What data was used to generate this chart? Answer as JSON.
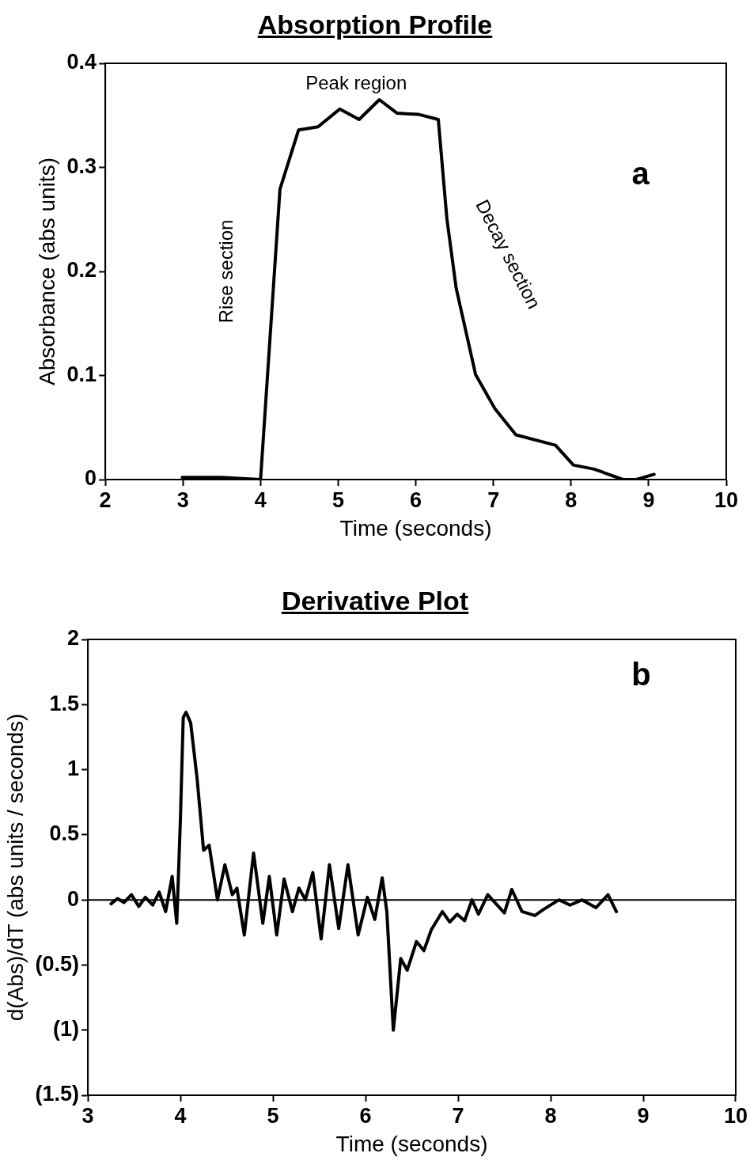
{
  "chart_data": [
    {
      "type": "line",
      "title": "Absorption Profile",
      "xlabel": "Time (seconds)",
      "ylabel": "Absorbance (abs units)",
      "xlim": [
        2,
        10
      ],
      "xticks": [
        2,
        3,
        4,
        5,
        6,
        7,
        8,
        9,
        10
      ],
      "ylim": [
        0,
        0.4
      ],
      "yticks": [
        0,
        0.1,
        0.2,
        0.3,
        0.4
      ],
      "grid": false,
      "marker": "none",
      "annotations": [
        "Peak region",
        "Rise section",
        "Decay section",
        "a"
      ],
      "series": [
        {
          "color": "#000000",
          "x": [
            2.99,
            3.5,
            4.0,
            4.25,
            4.49,
            4.74,
            5.02,
            5.27,
            5.53,
            5.76,
            6.03,
            6.29,
            6.4,
            6.52,
            6.77,
            7.02,
            7.29,
            7.8,
            8.03,
            8.3,
            8.67,
            8.84,
            9.07
          ],
          "values": [
            0.002,
            0.002,
            0,
            0.279,
            0.336,
            0.339,
            0.356,
            0.346,
            0.365,
            0.352,
            0.351,
            0.346,
            0.251,
            0.184,
            0.101,
            0.068,
            0.043,
            0.033,
            0.014,
            0.01,
            0,
            0,
            0.005
          ]
        }
      ]
    },
    {
      "type": "line",
      "title": "Derivative Plot",
      "xlabel": "Time (seconds)",
      "ylabel": "d(Abs)/dT (abs units / seconds)",
      "xlim": [
        3,
        10
      ],
      "xticks": [
        3,
        4,
        5,
        6,
        7,
        8,
        9,
        10
      ],
      "ylim": [
        -1.5,
        2
      ],
      "yticks": [
        {
          "value": -1.5,
          "label": "(1.5)"
        },
        {
          "value": -1,
          "label": "(1)"
        },
        {
          "value": -0.5,
          "label": "(0.5)"
        },
        0,
        0.5,
        1,
        1.5,
        2
      ],
      "grid": false,
      "marker": "none",
      "annotations": [
        "b"
      ],
      "ref_lines": [
        {
          "axis": "y",
          "value": 0
        }
      ],
      "series": [
        {
          "color": "#000000",
          "x": [
            3.25,
            3.32,
            3.39,
            3.47,
            3.55,
            3.62,
            3.7,
            3.77,
            3.84,
            3.91,
            3.96,
            4.0,
            4.03,
            4.06,
            4.11,
            4.18,
            4.25,
            4.31,
            4.4,
            4.48,
            4.56,
            4.61,
            4.69,
            4.79,
            4.89,
            4.96,
            5.04,
            5.12,
            5.21,
            5.28,
            5.35,
            5.43,
            5.52,
            5.61,
            5.71,
            5.81,
            5.92,
            6.02,
            6.1,
            6.18,
            6.23,
            6.3,
            6.38,
            6.45,
            6.55,
            6.63,
            6.71,
            6.83,
            6.91,
            6.99,
            7.07,
            7.15,
            7.22,
            7.32,
            7.5,
            7.58,
            7.69,
            7.83,
            7.93,
            8.09,
            8.21,
            8.34,
            8.49,
            8.62,
            8.71
          ],
          "values": [
            -0.03,
            0.01,
            -0.02,
            0.04,
            -0.05,
            0.02,
            -0.04,
            0.06,
            -0.09,
            0.18,
            -0.18,
            0.63,
            1.4,
            1.44,
            1.36,
            0.93,
            0.38,
            0.42,
            0,
            0.27,
            0.04,
            0.09,
            -0.27,
            0.36,
            -0.18,
            0.18,
            -0.27,
            0.16,
            -0.09,
            0.09,
            0,
            0.21,
            -0.3,
            0.27,
            -0.22,
            0.27,
            -0.27,
            0.02,
            -0.15,
            0.17,
            -0.09,
            -1,
            -0.45,
            -0.54,
            -0.32,
            -0.39,
            -0.23,
            -0.09,
            -0.17,
            -0.11,
            -0.16,
            0,
            -0.11,
            0.04,
            -0.1,
            0.08,
            -0.09,
            -0.12,
            -0.07,
            0,
            -0.04,
            0,
            -0.06,
            0.04,
            -0.09
          ]
        }
      ]
    }
  ]
}
